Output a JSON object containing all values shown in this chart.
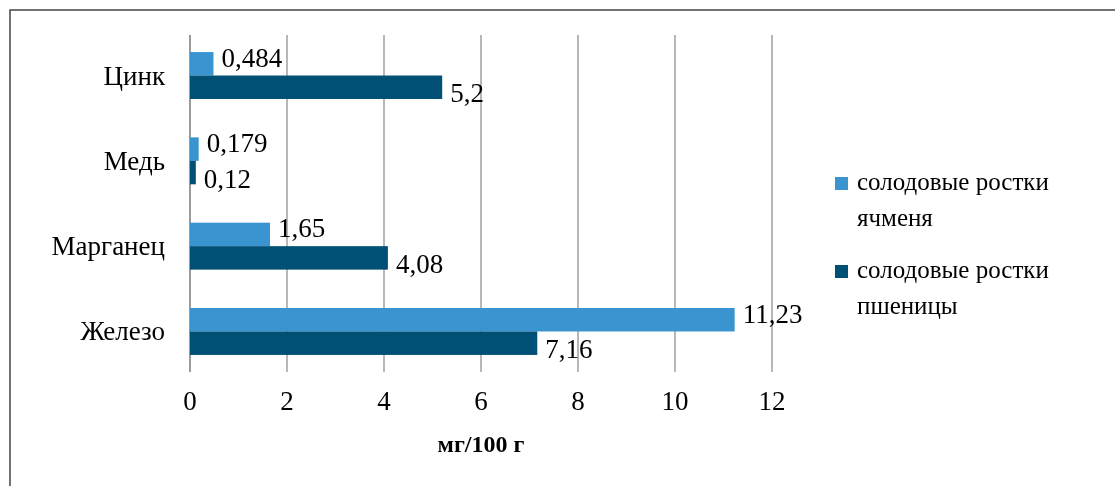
{
  "chart_data": {
    "type": "bar",
    "orientation": "horizontal",
    "xlabel": "мг/100 г",
    "categories": [
      "Цинк",
      "Медь",
      "Марганец",
      "Железо"
    ],
    "series": [
      {
        "name": "солодовые ростки ячменя",
        "color": "#3a94d0",
        "values": [
          0.484,
          0.179,
          1.65,
          11.23
        ],
        "value_labels": [
          "0,484",
          "0,179",
          "1,65",
          "11,23"
        ]
      },
      {
        "name": "солодовые ростки пшеницы",
        "color": "#004f74",
        "values": [
          5.2,
          0.12,
          4.08,
          7.16
        ],
        "value_labels": [
          "5,2",
          "0,12",
          "4,08",
          "7,16"
        ]
      }
    ],
    "xlim": [
      0,
      12
    ],
    "xticks": [
      0,
      2,
      4,
      6,
      8,
      10,
      12
    ],
    "grid": "x",
    "legend": "right"
  }
}
